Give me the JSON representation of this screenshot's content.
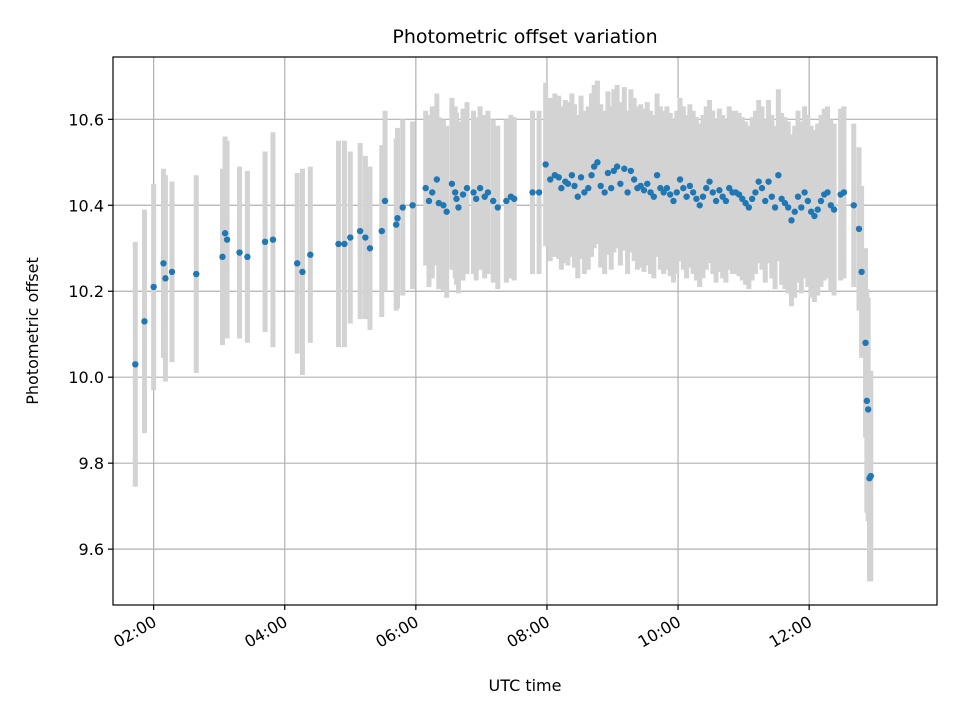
{
  "chart_data": {
    "type": "scatter",
    "title": "Photometric offset variation",
    "xlabel": "UTC time",
    "ylabel": "Photometric offset",
    "xlim_hours": [
      1.38,
      13.95
    ],
    "ylim": [
      9.47,
      10.745
    ],
    "grid": true,
    "x_ticks": [
      {
        "hour": 2,
        "label": "02:00"
      },
      {
        "hour": 4,
        "label": "04:00"
      },
      {
        "hour": 6,
        "label": "06:00"
      },
      {
        "hour": 8,
        "label": "08:00"
      },
      {
        "hour": 10,
        "label": "10:00"
      },
      {
        "hour": 12,
        "label": "12:00"
      }
    ],
    "y_ticks": [
      {
        "value": 9.6,
        "label": "9.6"
      },
      {
        "value": 9.8,
        "label": "9.8"
      },
      {
        "value": 10.0,
        "label": "10.0"
      },
      {
        "value": 10.2,
        "label": "10.2"
      },
      {
        "value": 10.4,
        "label": "10.4"
      },
      {
        "value": 10.6,
        "label": "10.6"
      }
    ],
    "colors": {
      "marker": "#1f77b4",
      "errorbar": "#d3d3d3",
      "grid": "#b0b0b0"
    },
    "series": [
      {
        "name": "Photometric offset",
        "columns": [
          "utc_hour",
          "offset",
          "error"
        ],
        "points": [
          [
            1.72,
            10.03,
            0.285
          ],
          [
            1.86,
            10.13,
            0.26
          ],
          [
            2.0,
            10.21,
            0.24
          ],
          [
            2.15,
            10.265,
            0.22
          ],
          [
            2.18,
            10.23,
            0.24
          ],
          [
            2.28,
            10.245,
            0.21
          ],
          [
            2.65,
            10.24,
            0.23
          ],
          [
            3.05,
            10.28,
            0.205
          ],
          [
            3.09,
            10.335,
            0.225
          ],
          [
            3.12,
            10.32,
            0.23
          ],
          [
            3.31,
            10.29,
            0.2
          ],
          [
            3.43,
            10.28,
            0.2
          ],
          [
            3.7,
            10.315,
            0.21
          ],
          [
            3.82,
            10.32,
            0.25
          ],
          [
            4.19,
            10.265,
            0.21
          ],
          [
            4.27,
            10.245,
            0.24
          ],
          [
            4.39,
            10.285,
            0.205
          ],
          [
            4.82,
            10.31,
            0.24
          ],
          [
            4.91,
            10.31,
            0.24
          ],
          [
            5.0,
            10.325,
            0.2
          ],
          [
            5.15,
            10.34,
            0.205
          ],
          [
            5.23,
            10.325,
            0.19
          ],
          [
            5.3,
            10.3,
            0.19
          ],
          [
            5.48,
            10.34,
            0.2
          ],
          [
            5.53,
            10.41,
            0.21
          ],
          [
            5.7,
            10.355,
            0.2
          ],
          [
            5.72,
            10.37,
            0.21
          ],
          [
            5.8,
            10.395,
            0.205
          ],
          [
            5.95,
            10.4,
            0.195
          ],
          [
            6.15,
            10.44,
            0.18
          ],
          [
            6.2,
            10.41,
            0.2
          ],
          [
            6.25,
            10.43,
            0.2
          ],
          [
            6.32,
            10.46,
            0.2
          ],
          [
            6.35,
            10.405,
            0.2
          ],
          [
            6.42,
            10.4,
            0.2
          ],
          [
            6.47,
            10.385,
            0.2
          ],
          [
            6.55,
            10.45,
            0.2
          ],
          [
            6.6,
            10.43,
            0.2
          ],
          [
            6.62,
            10.415,
            0.2
          ],
          [
            6.65,
            10.395,
            0.2
          ],
          [
            6.72,
            10.425,
            0.2
          ],
          [
            6.78,
            10.44,
            0.2
          ],
          [
            6.88,
            10.43,
            0.19
          ],
          [
            6.92,
            10.415,
            0.19
          ],
          [
            6.98,
            10.44,
            0.19
          ],
          [
            7.05,
            10.42,
            0.19
          ],
          [
            7.1,
            10.43,
            0.19
          ],
          [
            7.18,
            10.41,
            0.19
          ],
          [
            7.25,
            10.395,
            0.19
          ],
          [
            7.38,
            10.41,
            0.19
          ],
          [
            7.45,
            10.42,
            0.19
          ],
          [
            7.5,
            10.415,
            0.19
          ],
          [
            7.78,
            10.43,
            0.19
          ],
          [
            7.88,
            10.43,
            0.19
          ],
          [
            7.98,
            10.495,
            0.19
          ],
          [
            8.05,
            10.46,
            0.19
          ],
          [
            8.12,
            10.47,
            0.19
          ],
          [
            8.18,
            10.465,
            0.19
          ],
          [
            8.22,
            10.44,
            0.19
          ],
          [
            8.28,
            10.455,
            0.19
          ],
          [
            8.32,
            10.45,
            0.19
          ],
          [
            8.38,
            10.47,
            0.19
          ],
          [
            8.42,
            10.445,
            0.19
          ],
          [
            8.47,
            10.42,
            0.19
          ],
          [
            8.52,
            10.465,
            0.19
          ],
          [
            8.57,
            10.43,
            0.19
          ],
          [
            8.63,
            10.44,
            0.19
          ],
          [
            8.68,
            10.47,
            0.19
          ],
          [
            8.72,
            10.49,
            0.19
          ],
          [
            8.77,
            10.5,
            0.19
          ],
          [
            8.82,
            10.445,
            0.19
          ],
          [
            8.88,
            10.43,
            0.19
          ],
          [
            8.93,
            10.475,
            0.19
          ],
          [
            8.98,
            10.44,
            0.19
          ],
          [
            9.02,
            10.48,
            0.19
          ],
          [
            9.07,
            10.49,
            0.19
          ],
          [
            9.12,
            10.45,
            0.19
          ],
          [
            9.18,
            10.485,
            0.19
          ],
          [
            9.23,
            10.43,
            0.19
          ],
          [
            9.28,
            10.48,
            0.19
          ],
          [
            9.33,
            10.46,
            0.19
          ],
          [
            9.38,
            10.44,
            0.19
          ],
          [
            9.43,
            10.445,
            0.19
          ],
          [
            9.48,
            10.435,
            0.19
          ],
          [
            9.53,
            10.45,
            0.19
          ],
          [
            9.58,
            10.43,
            0.19
          ],
          [
            9.63,
            10.42,
            0.19
          ],
          [
            9.68,
            10.47,
            0.19
          ],
          [
            9.73,
            10.44,
            0.19
          ],
          [
            9.78,
            10.43,
            0.19
          ],
          [
            9.83,
            10.44,
            0.19
          ],
          [
            9.88,
            10.425,
            0.19
          ],
          [
            9.93,
            10.41,
            0.19
          ],
          [
            9.98,
            10.43,
            0.19
          ],
          [
            10.03,
            10.46,
            0.19
          ],
          [
            10.08,
            10.44,
            0.19
          ],
          [
            10.13,
            10.42,
            0.19
          ],
          [
            10.18,
            10.445,
            0.19
          ],
          [
            10.23,
            10.43,
            0.19
          ],
          [
            10.28,
            10.415,
            0.19
          ],
          [
            10.33,
            10.4,
            0.19
          ],
          [
            10.38,
            10.42,
            0.19
          ],
          [
            10.43,
            10.44,
            0.19
          ],
          [
            10.48,
            10.455,
            0.19
          ],
          [
            10.53,
            10.43,
            0.19
          ],
          [
            10.58,
            10.41,
            0.19
          ],
          [
            10.63,
            10.435,
            0.19
          ],
          [
            10.68,
            10.42,
            0.19
          ],
          [
            10.73,
            10.41,
            0.19
          ],
          [
            10.78,
            10.44,
            0.19
          ],
          [
            10.83,
            10.43,
            0.19
          ],
          [
            10.88,
            10.43,
            0.19
          ],
          [
            10.93,
            10.425,
            0.19
          ],
          [
            10.98,
            10.415,
            0.19
          ],
          [
            11.03,
            10.405,
            0.19
          ],
          [
            11.08,
            10.395,
            0.19
          ],
          [
            11.13,
            10.415,
            0.19
          ],
          [
            11.18,
            10.43,
            0.19
          ],
          [
            11.23,
            10.455,
            0.19
          ],
          [
            11.28,
            10.44,
            0.19
          ],
          [
            11.33,
            10.41,
            0.19
          ],
          [
            11.38,
            10.455,
            0.19
          ],
          [
            11.43,
            10.42,
            0.19
          ],
          [
            11.48,
            10.395,
            0.19
          ],
          [
            11.53,
            10.47,
            0.2
          ],
          [
            11.58,
            10.415,
            0.2
          ],
          [
            11.63,
            10.405,
            0.2
          ],
          [
            11.68,
            10.395,
            0.2
          ],
          [
            11.73,
            10.365,
            0.2
          ],
          [
            11.78,
            10.385,
            0.2
          ],
          [
            11.83,
            10.42,
            0.2
          ],
          [
            11.88,
            10.395,
            0.2
          ],
          [
            11.93,
            10.43,
            0.2
          ],
          [
            11.98,
            10.41,
            0.2
          ],
          [
            12.03,
            10.385,
            0.2
          ],
          [
            12.08,
            10.375,
            0.2
          ],
          [
            12.13,
            10.39,
            0.2
          ],
          [
            12.18,
            10.41,
            0.2
          ],
          [
            12.23,
            10.425,
            0.2
          ],
          [
            12.28,
            10.43,
            0.2
          ],
          [
            12.33,
            10.4,
            0.2
          ],
          [
            12.38,
            10.39,
            0.2
          ],
          [
            12.48,
            10.425,
            0.2
          ],
          [
            12.53,
            10.43,
            0.2
          ],
          [
            12.68,
            10.4,
            0.19
          ],
          [
            12.76,
            10.345,
            0.19
          ],
          [
            12.8,
            10.245,
            0.2
          ],
          [
            12.86,
            10.08,
            0.22
          ],
          [
            12.88,
            9.945,
            0.26
          ],
          [
            12.9,
            9.925,
            0.26
          ],
          [
            12.92,
            9.765,
            0.24
          ],
          [
            12.94,
            9.77,
            0.245
          ]
        ]
      }
    ]
  }
}
